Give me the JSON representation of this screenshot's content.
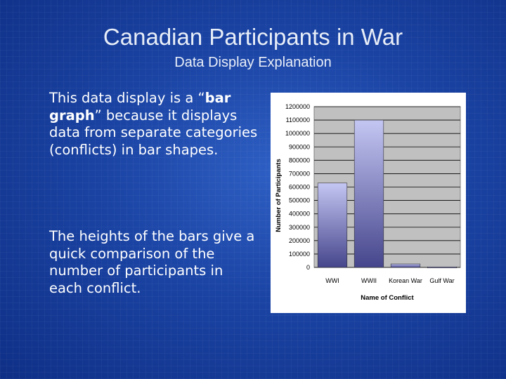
{
  "slide": {
    "title": "Canadian Participants in War",
    "subtitle": "Data Display Explanation",
    "paragraph1": {
      "before": "This data display is a “",
      "bold": "bar graph",
      "after": "” because it displays data from separate categories (conflicts) in bar shapes."
    },
    "paragraph2": "The heights of the bars give a quick comparison of the number of participants in each conflict."
  },
  "colors": {
    "background": "#1a43a3",
    "bar_light": "#c4c6f2",
    "bar_dark": "#45458c",
    "plot_area": "#c0c0c0"
  },
  "chart_data": {
    "type": "bar",
    "categories": [
      "WWI",
      "WWII",
      "Korean War",
      "Gulf War"
    ],
    "values": [
      630000,
      1100000,
      26000,
      4000
    ],
    "xlabel": "Name of Conflict",
    "ylabel": "Number of Participants",
    "ylim": [
      0,
      1200000
    ],
    "yticks": [
      0,
      100000,
      200000,
      300000,
      400000,
      500000,
      600000,
      700000,
      800000,
      900000,
      1000000,
      1100000,
      1200000
    ],
    "grid": true,
    "legend": "none"
  }
}
